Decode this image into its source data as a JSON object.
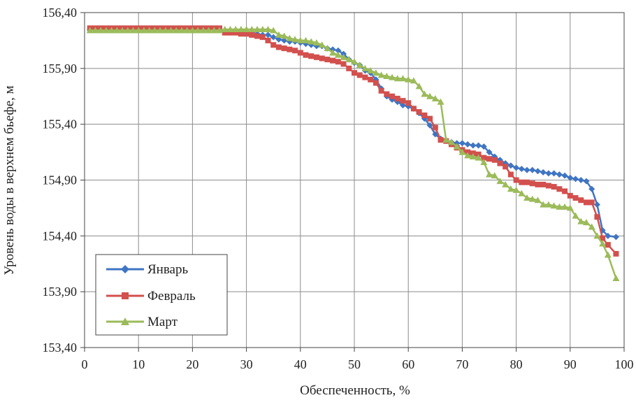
{
  "chart_data": {
    "type": "line",
    "xlabel": "Обеспеченность, %",
    "ylabel": "Уровень воды в верхнем бьефе, м",
    "xlim": [
      0,
      100
    ],
    "ylim": [
      153.4,
      156.4
    ],
    "grid": true,
    "legend_position": "bottom-left",
    "x_ticks": [
      "0",
      "10",
      "20",
      "30",
      "40",
      "50",
      "60",
      "70",
      "80",
      "90",
      "100"
    ],
    "y_ticks": [
      "153,40",
      "153,90",
      "154,40",
      "154,90",
      "155,40",
      "155,90",
      "156,40"
    ],
    "series": [
      {
        "name": "Январь",
        "color": "#3f75c3",
        "marker": "diamond",
        "x": [
          1,
          2,
          3,
          4,
          5,
          6,
          7,
          8,
          9,
          10,
          11,
          12,
          13,
          14,
          15,
          16,
          17,
          18,
          19,
          20,
          21,
          22,
          23,
          24,
          25,
          26,
          27,
          28,
          29,
          30,
          31,
          32,
          33,
          34,
          35,
          36,
          37,
          38,
          39,
          40,
          41,
          42,
          43,
          44,
          45,
          46,
          47,
          48,
          49,
          50,
          51,
          52,
          53,
          54,
          55,
          56,
          57,
          58,
          59,
          60,
          61,
          62,
          63,
          64,
          65,
          66,
          67,
          68,
          69,
          70,
          71,
          72,
          73,
          74,
          75,
          76,
          77,
          78,
          79,
          80,
          81,
          82,
          83,
          84,
          85,
          86,
          87,
          88,
          89,
          90,
          91,
          92,
          93,
          94,
          95,
          96,
          97,
          98.5
        ],
        "values": [
          156.25,
          156.25,
          156.25,
          156.25,
          156.25,
          156.25,
          156.25,
          156.25,
          156.25,
          156.25,
          156.25,
          156.25,
          156.25,
          156.25,
          156.25,
          156.25,
          156.25,
          156.25,
          156.25,
          156.25,
          156.25,
          156.25,
          156.25,
          156.25,
          156.25,
          156.24,
          156.24,
          156.24,
          156.24,
          156.23,
          156.22,
          156.21,
          156.2,
          156.2,
          156.18,
          156.16,
          156.15,
          156.14,
          156.14,
          156.13,
          156.12,
          156.11,
          156.1,
          156.1,
          156.08,
          156.07,
          156.06,
          156.03,
          155.98,
          155.95,
          155.93,
          155.88,
          155.86,
          155.8,
          155.72,
          155.65,
          155.62,
          155.6,
          155.57,
          155.56,
          155.54,
          155.5,
          155.45,
          155.39,
          155.31,
          155.27,
          155.25,
          155.24,
          155.23,
          155.23,
          155.22,
          155.21,
          155.21,
          155.2,
          155.15,
          155.11,
          155.08,
          155.05,
          155.03,
          155.01,
          155.0,
          154.99,
          154.99,
          154.98,
          154.97,
          154.96,
          154.96,
          154.95,
          154.94,
          154.92,
          154.91,
          154.9,
          154.89,
          154.82,
          154.68,
          154.45,
          154.4,
          154.39
        ]
      },
      {
        "name": "Февраль",
        "color": "#d2504d",
        "marker": "square",
        "x": [
          1,
          2,
          3,
          4,
          5,
          6,
          7,
          8,
          9,
          10,
          11,
          12,
          13,
          14,
          15,
          16,
          17,
          18,
          19,
          20,
          21,
          22,
          23,
          24,
          25,
          26,
          27,
          28,
          29,
          30,
          31,
          32,
          33,
          34,
          35,
          36,
          37,
          38,
          39,
          40,
          41,
          42,
          43,
          44,
          45,
          46,
          47,
          48,
          49,
          50,
          51,
          52,
          53,
          54,
          55,
          56,
          57,
          58,
          59,
          60,
          61,
          62,
          63,
          64,
          65,
          66,
          67,
          68,
          69,
          70,
          71,
          72,
          73,
          74,
          75,
          76,
          77,
          78,
          79,
          80,
          81,
          82,
          83,
          84,
          85,
          86,
          87,
          88,
          89,
          90,
          91,
          92,
          93,
          94,
          95,
          96,
          97,
          98.5
        ],
        "values": [
          156.26,
          156.26,
          156.26,
          156.26,
          156.26,
          156.26,
          156.26,
          156.26,
          156.26,
          156.26,
          156.26,
          156.26,
          156.26,
          156.26,
          156.26,
          156.26,
          156.26,
          156.26,
          156.26,
          156.26,
          156.26,
          156.26,
          156.26,
          156.26,
          156.26,
          156.22,
          156.22,
          156.22,
          156.21,
          156.21,
          156.2,
          156.19,
          156.18,
          156.15,
          156.11,
          156.09,
          156.08,
          156.07,
          156.06,
          156.04,
          156.02,
          156.01,
          156.0,
          155.99,
          155.98,
          155.97,
          155.96,
          155.94,
          155.9,
          155.86,
          155.84,
          155.82,
          155.8,
          155.77,
          155.7,
          155.67,
          155.65,
          155.63,
          155.61,
          155.59,
          155.54,
          155.51,
          155.48,
          155.45,
          155.37,
          155.26,
          155.25,
          155.22,
          155.19,
          155.17,
          155.15,
          155.14,
          155.13,
          155.1,
          155.09,
          155.08,
          155.05,
          155.02,
          154.95,
          154.9,
          154.88,
          154.88,
          154.87,
          154.86,
          154.86,
          154.85,
          154.84,
          154.82,
          154.8,
          154.76,
          154.74,
          154.72,
          154.7,
          154.7,
          154.57,
          154.38,
          154.32,
          154.24
        ]
      },
      {
        "name": "Март",
        "color": "#9bbb59",
        "marker": "triangle",
        "x": [
          1,
          2,
          3,
          4,
          5,
          6,
          7,
          8,
          9,
          10,
          11,
          12,
          13,
          14,
          15,
          16,
          17,
          18,
          19,
          20,
          21,
          22,
          23,
          24,
          25,
          26,
          27,
          28,
          29,
          30,
          31,
          32,
          33,
          34,
          35,
          36,
          37,
          38,
          39,
          40,
          41,
          42,
          43,
          44,
          45,
          46,
          47,
          48,
          49,
          50,
          51,
          52,
          53,
          54,
          55,
          56,
          57,
          58,
          59,
          60,
          61,
          62,
          63,
          64,
          65,
          66,
          67,
          68,
          69,
          70,
          71,
          72,
          73,
          74,
          75,
          76,
          77,
          78,
          79,
          80,
          81,
          82,
          83,
          84,
          85,
          86,
          87,
          88,
          89,
          90,
          91,
          92,
          93,
          94,
          95,
          96,
          97,
          98.5
        ],
        "values": [
          156.24,
          156.24,
          156.24,
          156.24,
          156.24,
          156.24,
          156.24,
          156.24,
          156.24,
          156.24,
          156.24,
          156.24,
          156.24,
          156.24,
          156.24,
          156.24,
          156.24,
          156.24,
          156.24,
          156.24,
          156.24,
          156.24,
          156.24,
          156.24,
          156.24,
          156.25,
          156.25,
          156.25,
          156.25,
          156.25,
          156.25,
          156.25,
          156.25,
          156.25,
          156.24,
          156.2,
          156.19,
          156.17,
          156.16,
          156.15,
          156.15,
          156.14,
          156.13,
          156.11,
          156.08,
          156.04,
          156.02,
          156.0,
          155.98,
          155.96,
          155.93,
          155.9,
          155.88,
          155.86,
          155.84,
          155.83,
          155.82,
          155.81,
          155.81,
          155.8,
          155.79,
          155.74,
          155.67,
          155.65,
          155.63,
          155.6,
          155.26,
          155.24,
          155.2,
          155.15,
          155.12,
          155.11,
          155.1,
          155.06,
          154.95,
          154.94,
          154.89,
          154.86,
          154.82,
          154.81,
          154.78,
          154.74,
          154.73,
          154.72,
          154.68,
          154.68,
          154.67,
          154.66,
          154.66,
          154.65,
          154.58,
          154.53,
          154.52,
          154.48,
          154.4,
          154.33,
          154.23,
          154.02
        ]
      }
    ]
  }
}
